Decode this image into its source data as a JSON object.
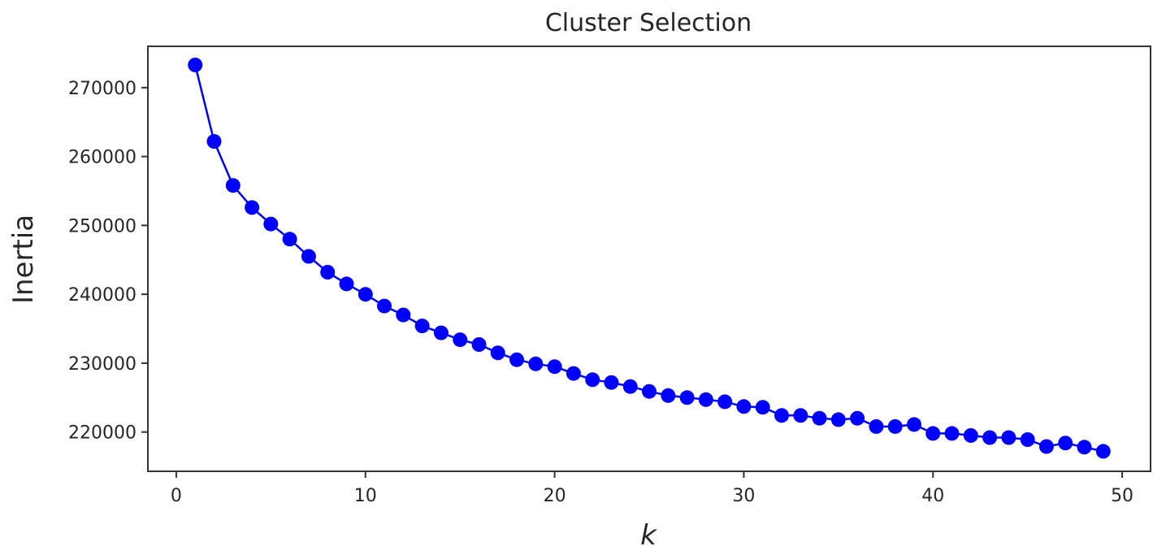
{
  "chart_data": {
    "type": "line",
    "title": "Cluster Selection",
    "xlabel": "k",
    "ylabel": "Inertia",
    "xlim": [
      -1.5,
      51.5
    ],
    "ylim": [
      214300,
      276000
    ],
    "xticks": [
      0,
      10,
      20,
      30,
      40,
      50
    ],
    "yticks": [
      220000,
      230000,
      240000,
      250000,
      260000,
      270000
    ],
    "grid": false,
    "legend": "none",
    "series": [
      {
        "color": "#0000ff",
        "marker": "circle",
        "x": [
          1,
          2,
          3,
          4,
          5,
          6,
          7,
          8,
          9,
          10,
          11,
          12,
          13,
          14,
          15,
          16,
          17,
          18,
          19,
          20,
          21,
          22,
          23,
          24,
          25,
          26,
          27,
          28,
          29,
          30,
          31,
          32,
          33,
          34,
          35,
          36,
          37,
          38,
          39,
          40,
          41,
          42,
          43,
          44,
          45,
          46,
          47,
          48,
          49
        ],
        "y": [
          273300,
          262200,
          255800,
          252600,
          250200,
          248000,
          245500,
          243200,
          241500,
          240000,
          238300,
          237000,
          235400,
          234400,
          233400,
          232700,
          231500,
          230500,
          229900,
          229500,
          228500,
          227600,
          227200,
          226600,
          225900,
          225300,
          225000,
          224700,
          224400,
          223700,
          223600,
          222400,
          222400,
          222000,
          221800,
          222000,
          220800,
          220800,
          221100,
          219800,
          219800,
          219500,
          219200,
          219200,
          218900,
          217900,
          218400,
          217800,
          217200
        ]
      }
    ]
  }
}
